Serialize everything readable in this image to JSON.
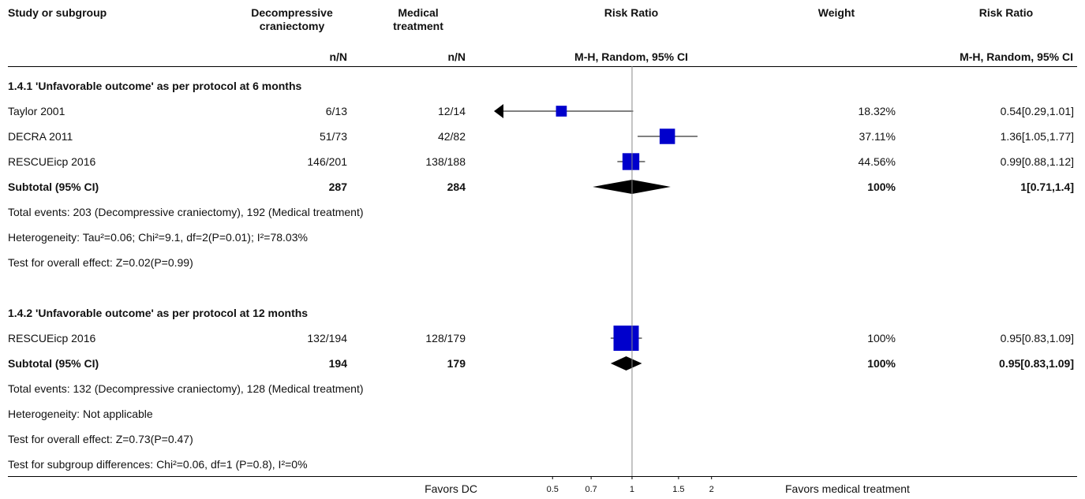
{
  "header": {
    "study": "Study or subgroup",
    "dc": "Decompressive\ncraniectomy",
    "med": "Medical\ntreatment",
    "rr_plot": "Risk Ratio",
    "weight": "Weight",
    "rr_text": "Risk Ratio",
    "dc_sub": "n/N",
    "med_sub": "n/N",
    "rr_plot_sub": "M-H, Random, 95% CI",
    "rr_text_sub": "M-H, Random, 95% CI"
  },
  "chart_data": {
    "type": "forest",
    "x_scale": "log",
    "xlim": [
      0.3,
      3.2
    ],
    "x_ticks": [
      "0.5",
      "0.7",
      "1",
      "1.5",
      "2"
    ],
    "x_tick_values": [
      0.5,
      0.7,
      1,
      1.5,
      2
    ],
    "left_label": "Favors DC",
    "right_label": "Favors medical treatment",
    "subgroups": [
      {
        "title": "1.4.1 'Unfavorable outcome' as per protocol at 6 months",
        "studies": [
          {
            "name": "Taylor 2001",
            "dc": "6/13",
            "med": "12/14",
            "weight": "18.32%",
            "rr_text": "0.54[0.29,1.01]",
            "rr": 0.54,
            "lo": 0.29,
            "hi": 1.01,
            "w": 18.32,
            "arrow_left": true
          },
          {
            "name": "DECRA 2011",
            "dc": "51/73",
            "med": "42/82",
            "weight": "37.11%",
            "rr_text": "1.36[1.05,1.77]",
            "rr": 1.36,
            "lo": 1.05,
            "hi": 1.77,
            "w": 37.11
          },
          {
            "name": "RESCUEicp 2016",
            "dc": "146/201",
            "med": "138/188",
            "weight": "44.56%",
            "rr_text": "0.99[0.88,1.12]",
            "rr": 0.99,
            "lo": 0.88,
            "hi": 1.12,
            "w": 44.56
          }
        ],
        "subtotal": {
          "label": "Subtotal (95% CI)",
          "dc": "287",
          "med": "284",
          "weight": "100%",
          "rr_text": "1[0.71,1.4]",
          "rr": 1.0,
          "lo": 0.71,
          "hi": 1.4
        },
        "notes": [
          "Total events: 203 (Decompressive craniectomy), 192 (Medical treatment)",
          "Heterogeneity: Tau²=0.06; Chi²=9.1, df=2(P=0.01); I²=78.03%",
          "Test for overall effect: Z=0.02(P=0.99)"
        ]
      },
      {
        "title": "1.4.2 'Unfavorable outcome' as per protocol at 12 months",
        "studies": [
          {
            "name": "RESCUEicp 2016",
            "dc": "132/194",
            "med": "128/179",
            "weight": "100%",
            "rr_text": "0.95[0.83,1.09]",
            "rr": 0.95,
            "lo": 0.83,
            "hi": 1.09,
            "w": 100
          }
        ],
        "subtotal": {
          "label": "Subtotal (95% CI)",
          "dc": "194",
          "med": "179",
          "weight": "100%",
          "rr_text": "0.95[0.83,1.09]",
          "rr": 0.95,
          "lo": 0.83,
          "hi": 1.09
        },
        "notes": [
          "Total events: 132 (Decompressive craniectomy), 128 (Medical treatment)",
          "Heterogeneity: Not applicable",
          "Test for overall effect: Z=0.73(P=0.47)"
        ]
      }
    ],
    "footer_note": "Test for subgroup differences: Chi²=0.06, df=1 (P=0.8), I²=0%"
  },
  "colors": {
    "box": "#0000cc",
    "diamond": "#000000",
    "line": "#000000"
  }
}
